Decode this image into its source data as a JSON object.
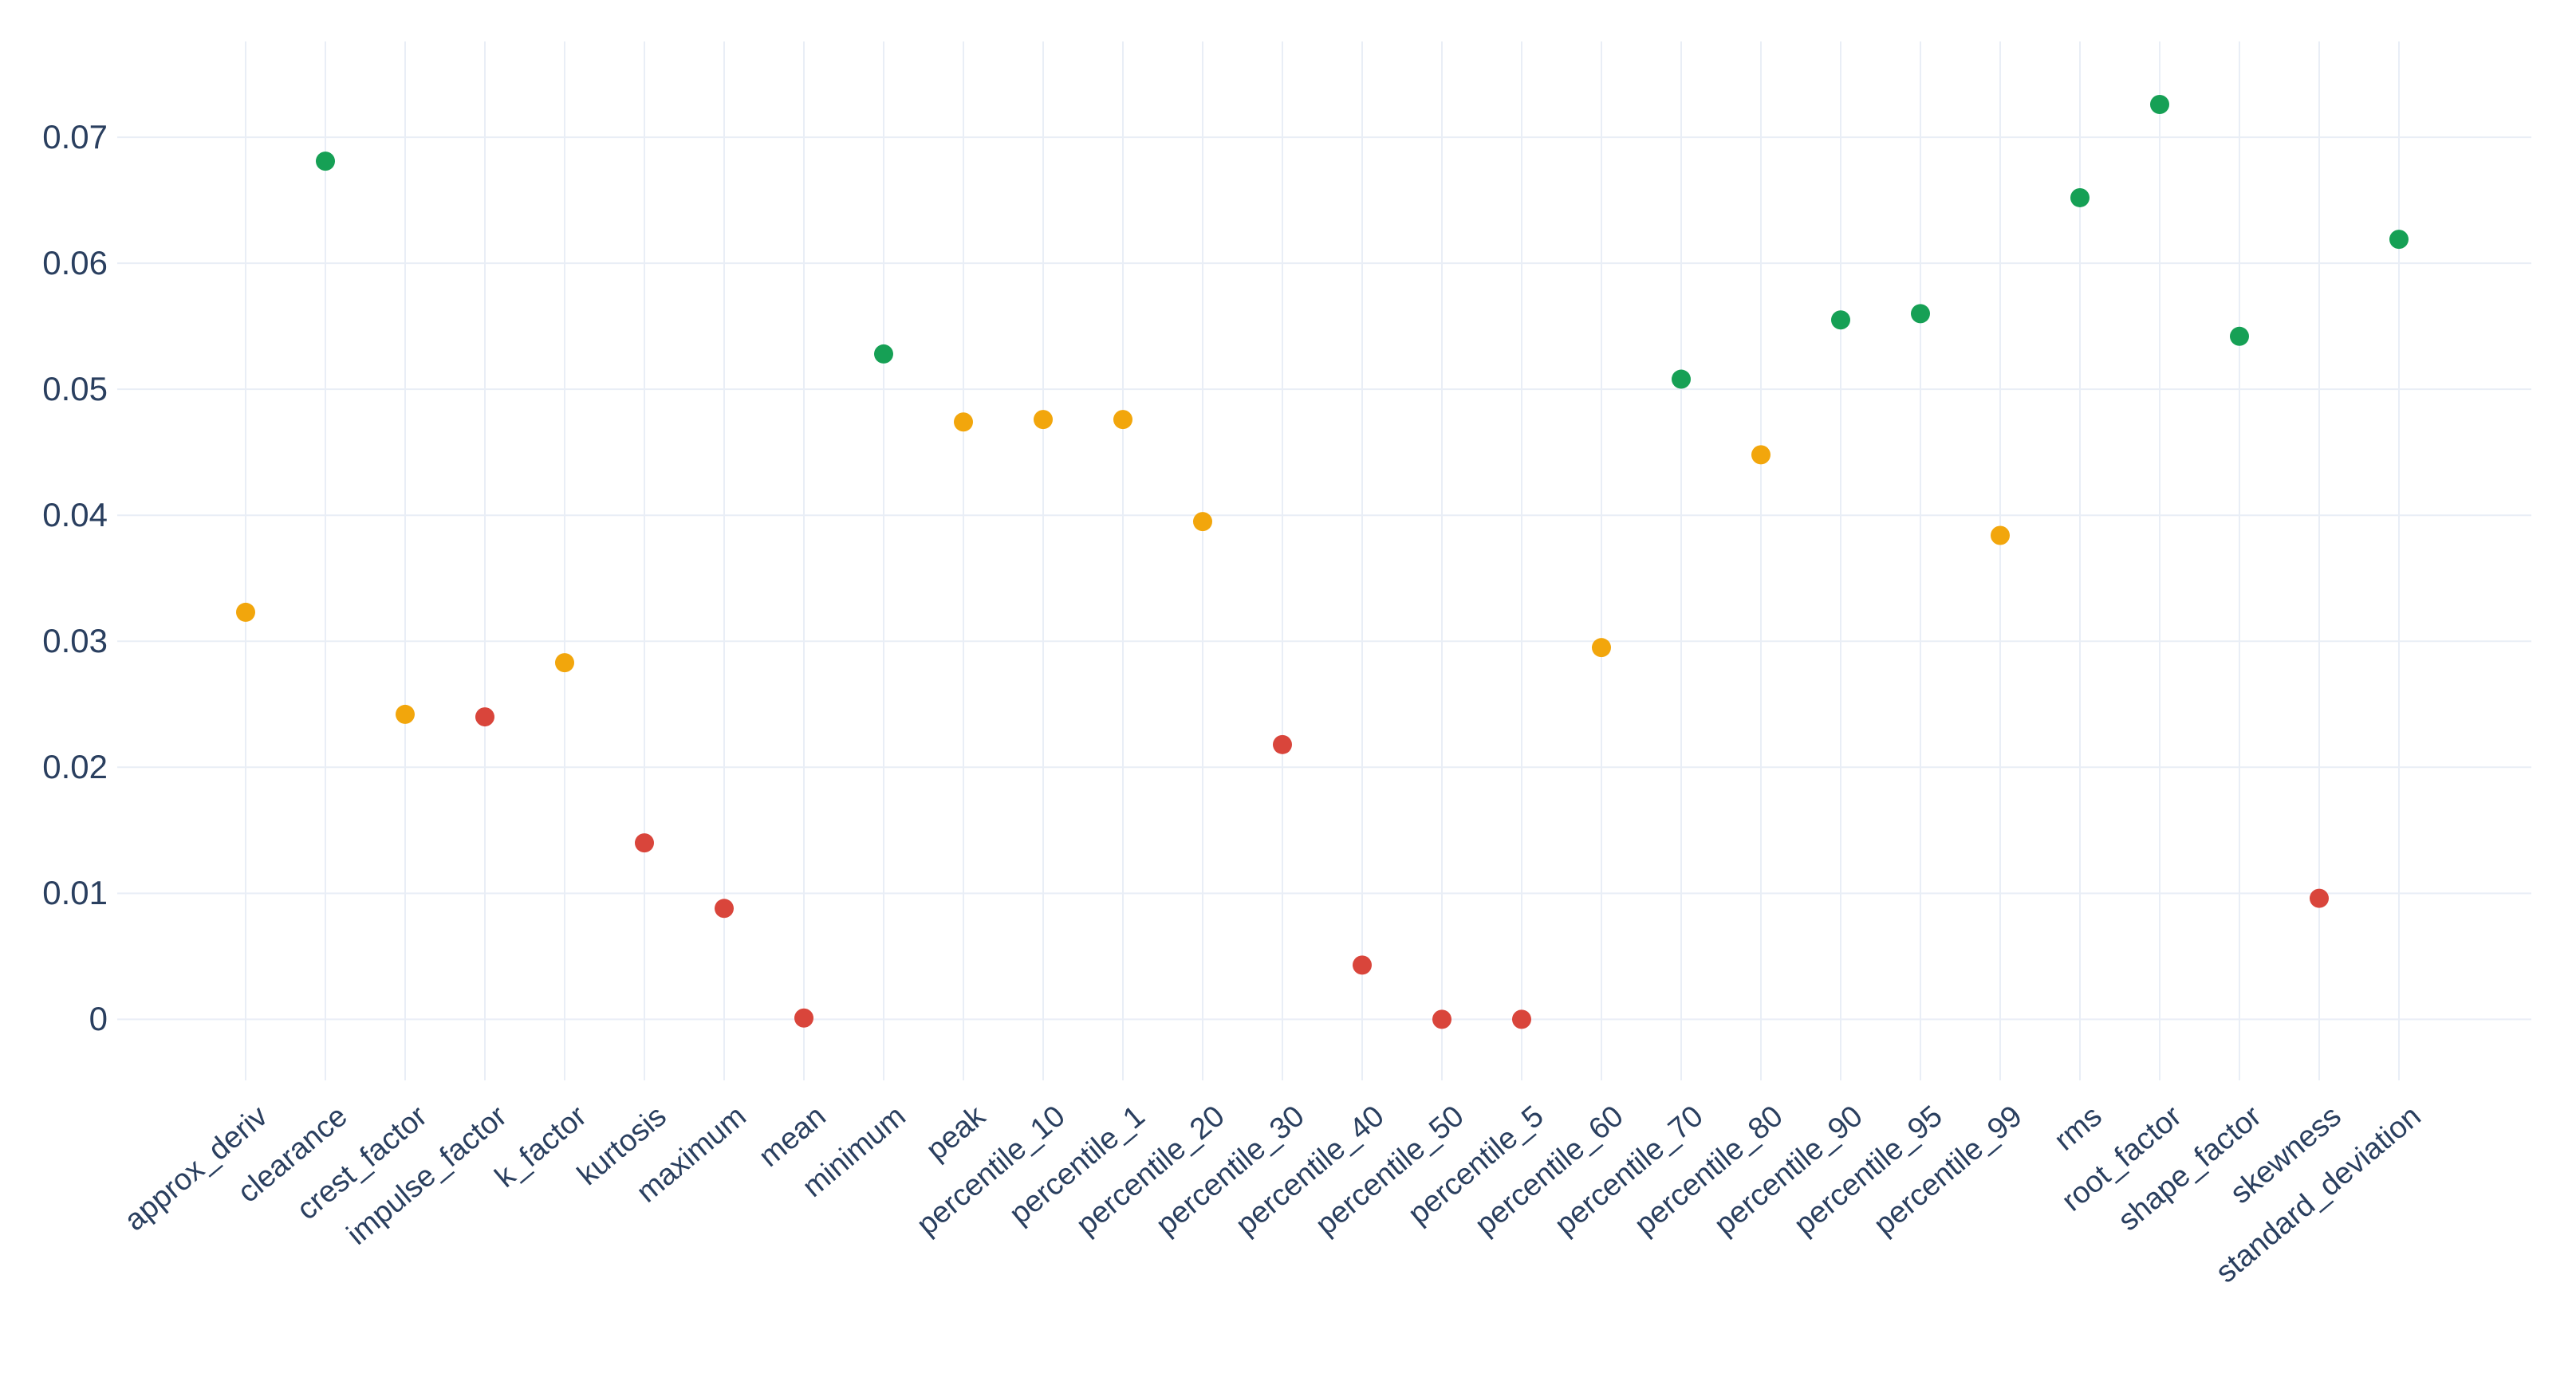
{
  "chart_data": {
    "type": "scatter",
    "title": "",
    "xlabel": "",
    "ylabel": "",
    "grid": true,
    "legend_position": "none",
    "background_color": "#ffffff",
    "grid_color": "#e9eef6",
    "tick_text_color": "#2a3f5f",
    "palette": {
      "green": "#16a055",
      "orange": "#f2a60c",
      "red": "#d9453b"
    },
    "ylim": [
      -0.00485,
      0.0776
    ],
    "y_ticks": {
      "labels": [
        "0.07",
        "0.06",
        "0.05",
        "0.04",
        "0.03",
        "0.02",
        "0.01",
        "0"
      ],
      "values": [
        0.07,
        0.06,
        0.05,
        0.04,
        0.03,
        0.02,
        0.01,
        0
      ]
    },
    "categories": [
      "approx_deriv",
      "clearance",
      "crest_factor",
      "impulse_factor",
      "k_factor",
      "kurtosis",
      "maximum",
      "mean",
      "minimum",
      "peak",
      "percentile_10",
      "percentile_1",
      "percentile_20",
      "percentile_30",
      "percentile_40",
      "percentile_50",
      "percentile_5",
      "percentile_60",
      "percentile_70",
      "percentile_80",
      "percentile_90",
      "percentile_95",
      "percentile_99",
      "rms",
      "root_factor",
      "shape_factor",
      "skewness",
      "standard_deviation"
    ],
    "points": [
      {
        "label": "approx_deriv",
        "value": 0.0323,
        "color": "orange"
      },
      {
        "label": "clearance",
        "value": 0.0681,
        "color": "green"
      },
      {
        "label": "crest_factor",
        "value": 0.0242,
        "color": "orange"
      },
      {
        "label": "impulse_factor",
        "value": 0.024,
        "color": "red"
      },
      {
        "label": "k_factor",
        "value": 0.0283,
        "color": "orange"
      },
      {
        "label": "kurtosis",
        "value": 0.014,
        "color": "red"
      },
      {
        "label": "maximum",
        "value": 0.0088,
        "color": "red"
      },
      {
        "label": "mean",
        "value": 0.0001,
        "color": "red"
      },
      {
        "label": "minimum",
        "value": 0.0528,
        "color": "green"
      },
      {
        "label": "peak",
        "value": 0.0474,
        "color": "orange"
      },
      {
        "label": "percentile_10",
        "value": 0.0476,
        "color": "orange"
      },
      {
        "label": "percentile_1",
        "value": 0.0476,
        "color": "orange"
      },
      {
        "label": "percentile_20",
        "value": 0.0395,
        "color": "orange"
      },
      {
        "label": "percentile_30",
        "value": 0.0218,
        "color": "red"
      },
      {
        "label": "percentile_40",
        "value": 0.0043,
        "color": "red"
      },
      {
        "label": "percentile_50",
        "value": 0.0,
        "color": "red"
      },
      {
        "label": "percentile_5",
        "value": 0.0,
        "color": "red"
      },
      {
        "label": "percentile_60",
        "value": 0.0295,
        "color": "orange"
      },
      {
        "label": "percentile_70",
        "value": 0.0508,
        "color": "green"
      },
      {
        "label": "percentile_80",
        "value": 0.0448,
        "color": "orange"
      },
      {
        "label": "percentile_90",
        "value": 0.0555,
        "color": "green"
      },
      {
        "label": "percentile_95",
        "value": 0.056,
        "color": "green"
      },
      {
        "label": "percentile_99",
        "value": 0.0384,
        "color": "orange"
      },
      {
        "label": "rms",
        "value": 0.0652,
        "color": "green"
      },
      {
        "label": "root_factor",
        "value": 0.0726,
        "color": "green"
      },
      {
        "label": "shape_factor",
        "value": 0.0542,
        "color": "green"
      },
      {
        "label": "skewness",
        "value": 0.0096,
        "color": "red"
      },
      {
        "label": "standard_deviation",
        "value": 0.0619,
        "color": "green"
      }
    ]
  }
}
